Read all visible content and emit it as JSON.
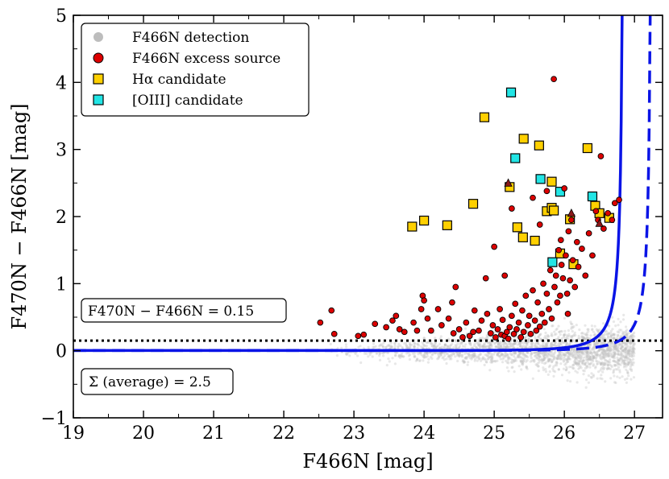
{
  "chart_data": {
    "type": "scatter",
    "xlabel": "F466N [mag]",
    "ylabel": "F470N − F466N [mag]",
    "xlim": [
      19,
      27.4
    ],
    "ylim": [
      -1,
      5
    ],
    "xticks": [
      19,
      20,
      21,
      22,
      23,
      24,
      25,
      26,
      27
    ],
    "yticks": [
      -1,
      0,
      1,
      2,
      3,
      4,
      5
    ],
    "xtick_labels": [
      "19",
      "20",
      "21",
      "22",
      "23",
      "24",
      "25",
      "26",
      "27"
    ],
    "ytick_labels": [
      "−1",
      "0",
      "1",
      "2",
      "3",
      "4",
      "5"
    ],
    "legend": {
      "position": "top-left",
      "entries": [
        {
          "label": "F466N detection",
          "marker": "circle",
          "color": "#bdbdbd"
        },
        {
          "label": "F466N excess source",
          "marker": "circle",
          "color": "#dd0000"
        },
        {
          "label": "Hα candidate",
          "marker": "square",
          "color": "#ffd000"
        },
        {
          "label": "[OIII] candidate",
          "marker": "square",
          "color": "#22e5e5"
        }
      ]
    },
    "annotations": {
      "threshold_label": "F470N − F466N = 0.15",
      "sigma_label": "Σ (average) = 2.5"
    },
    "threshold_line": {
      "y": 0.15,
      "style": "dotted",
      "color": "#000000"
    },
    "curves": [
      {
        "name": "solid",
        "style": "solid",
        "color": "#0a14e6",
        "asymptote": 26.85
      },
      {
        "name": "dashed",
        "style": "dashed",
        "color": "#0a14e6",
        "asymptote": 27.25
      }
    ],
    "series": [
      {
        "name": "Hα candidate",
        "color": "#ffd000",
        "points": [
          [
            23.83,
            1.85
          ],
          [
            24.0,
            1.94
          ],
          [
            24.33,
            1.87
          ],
          [
            24.7,
            2.19
          ],
          [
            24.86,
            3.48
          ],
          [
            25.22,
            2.44
          ],
          [
            25.33,
            1.84
          ],
          [
            25.42,
            3.16
          ],
          [
            25.41,
            1.69
          ],
          [
            25.58,
            1.64
          ],
          [
            25.64,
            3.06
          ],
          [
            25.75,
            2.08
          ],
          [
            25.82,
            2.13
          ],
          [
            25.85,
            2.09
          ],
          [
            25.82,
            2.52
          ],
          [
            25.94,
            1.45
          ],
          [
            26.08,
            1.96
          ],
          [
            26.13,
            1.29
          ],
          [
            26.33,
            3.02
          ],
          [
            26.44,
            2.16
          ],
          [
            26.5,
            2.05
          ],
          [
            26.64,
            1.98
          ]
        ]
      },
      {
        "name": "[OIII] candidate",
        "color": "#22e5e5",
        "points": [
          [
            25.24,
            3.85
          ],
          [
            25.3,
            2.87
          ],
          [
            25.66,
            2.56
          ],
          [
            25.83,
            1.32
          ],
          [
            25.94,
            2.37
          ],
          [
            26.4,
            2.3
          ]
        ]
      },
      {
        "name": "F466N excess source",
        "color": "#dd0000",
        "points": [
          [
            22.52,
            0.42
          ],
          [
            22.68,
            0.6
          ],
          [
            22.72,
            0.25
          ],
          [
            23.06,
            0.22
          ],
          [
            23.14,
            0.24
          ],
          [
            23.46,
            0.35
          ],
          [
            23.55,
            0.45
          ],
          [
            23.65,
            0.32
          ],
          [
            23.72,
            0.28
          ],
          [
            23.85,
            0.42
          ],
          [
            23.9,
            0.3
          ],
          [
            23.96,
            0.62
          ],
          [
            23.98,
            0.82
          ],
          [
            24.0,
            0.75
          ],
          [
            24.05,
            0.48
          ],
          [
            24.1,
            0.3
          ],
          [
            24.2,
            0.62
          ],
          [
            24.25,
            0.38
          ],
          [
            24.35,
            0.48
          ],
          [
            24.42,
            0.26
          ],
          [
            24.45,
            0.95
          ],
          [
            24.5,
            0.32
          ],
          [
            24.55,
            0.2
          ],
          [
            24.6,
            0.42
          ],
          [
            24.65,
            0.22
          ],
          [
            24.7,
            0.28
          ],
          [
            24.78,
            0.3
          ],
          [
            24.82,
            0.45
          ],
          [
            24.88,
            1.08
          ],
          [
            24.9,
            0.55
          ],
          [
            24.95,
            0.26
          ],
          [
            24.98,
            0.38
          ],
          [
            25.02,
            0.2
          ],
          [
            25.05,
            0.32
          ],
          [
            25.08,
            0.62
          ],
          [
            25.1,
            0.24
          ],
          [
            25.12,
            0.46
          ],
          [
            25.15,
            0.22
          ],
          [
            25.18,
            0.28
          ],
          [
            25.2,
            0.18
          ],
          [
            25.22,
            0.35
          ],
          [
            25.25,
            0.52
          ],
          [
            25.28,
            0.25
          ],
          [
            25.3,
            0.7
          ],
          [
            25.32,
            0.32
          ],
          [
            25.35,
            0.42
          ],
          [
            25.38,
            0.2
          ],
          [
            25.4,
            0.6
          ],
          [
            25.42,
            0.28
          ],
          [
            25.45,
            0.82
          ],
          [
            25.48,
            0.38
          ],
          [
            25.5,
            0.52
          ],
          [
            25.52,
            0.25
          ],
          [
            25.55,
            0.9
          ],
          [
            25.58,
            0.45
          ],
          [
            25.6,
            0.3
          ],
          [
            25.62,
            0.72
          ],
          [
            25.65,
            0.36
          ],
          [
            25.68,
            0.55
          ],
          [
            25.7,
            1.0
          ],
          [
            25.72,
            0.42
          ],
          [
            25.75,
            0.85
          ],
          [
            25.78,
            0.62
          ],
          [
            25.8,
            1.2
          ],
          [
            25.82,
            0.48
          ],
          [
            25.85,
            4.05
          ],
          [
            25.86,
            0.95
          ],
          [
            25.88,
            1.12
          ],
          [
            25.9,
            0.72
          ],
          [
            25.92,
            1.5
          ],
          [
            25.94,
            0.82
          ],
          [
            25.96,
            1.28
          ],
          [
            25.98,
            1.08
          ],
          [
            26.0,
            2.42
          ],
          [
            26.02,
            1.42
          ],
          [
            26.04,
            0.85
          ],
          [
            26.06,
            1.78
          ],
          [
            26.08,
            1.05
          ],
          [
            26.1,
            1.95
          ],
          [
            26.12,
            1.35
          ],
          [
            26.15,
            0.95
          ],
          [
            26.18,
            1.62
          ],
          [
            26.2,
            1.25
          ],
          [
            26.25,
            1.52
          ],
          [
            26.3,
            1.12
          ],
          [
            26.35,
            1.75
          ],
          [
            26.4,
            1.42
          ],
          [
            26.45,
            2.08
          ],
          [
            26.48,
            1.95
          ],
          [
            26.52,
            2.9
          ],
          [
            26.56,
            1.82
          ],
          [
            26.62,
            2.05
          ],
          [
            26.68,
            1.95
          ],
          [
            26.72,
            2.2
          ],
          [
            26.78,
            2.25
          ],
          [
            25.0,
            1.55
          ],
          [
            25.15,
            1.12
          ],
          [
            24.72,
            0.6
          ],
          [
            24.4,
            0.72
          ],
          [
            23.6,
            0.52
          ],
          [
            23.3,
            0.4
          ],
          [
            25.55,
            2.28
          ],
          [
            25.75,
            2.38
          ],
          [
            25.95,
            1.65
          ],
          [
            26.05,
            0.55
          ],
          [
            25.25,
            2.12
          ],
          [
            25.65,
            1.88
          ]
        ]
      },
      {
        "name": "excess source (triangle)",
        "color": "#8b1a1a",
        "points": [
          [
            25.2,
            2.5
          ],
          [
            26.1,
            2.05
          ],
          [
            26.5,
            1.9
          ]
        ]
      }
    ]
  }
}
